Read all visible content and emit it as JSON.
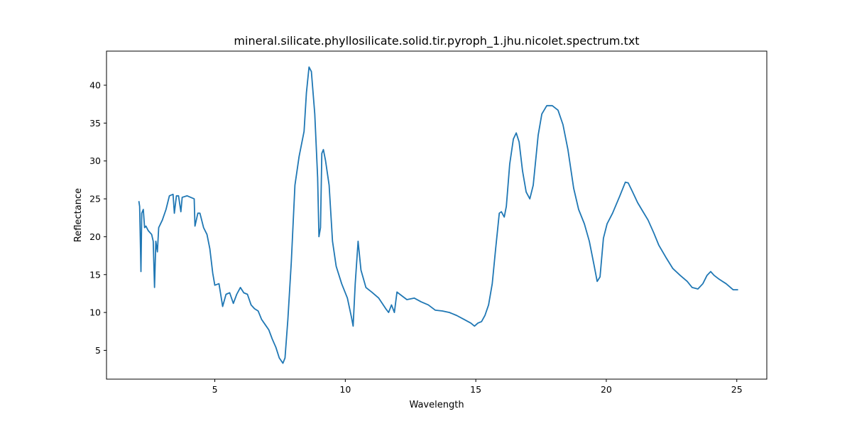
{
  "chart_data": {
    "type": "line",
    "title": "mineral.silicate.phyllosilicate.solid.tir.pyroph_1.jhu.nicolet.spectrum.txt",
    "x_label": "Wavelength",
    "y_label": "Reflectance",
    "xlim": [
      0.85,
      26.15
    ],
    "ylim": [
      1.2,
      44.5
    ],
    "xticks": [
      5,
      10,
      15,
      20,
      25
    ],
    "yticks": [
      5,
      10,
      15,
      20,
      25,
      30,
      35,
      40
    ],
    "grid": false,
    "series": [
      {
        "color": "#1f77b4",
        "x": [
          2.09,
          2.12,
          2.17,
          2.2,
          2.26,
          2.31,
          2.36,
          2.45,
          2.58,
          2.64,
          2.69,
          2.74,
          2.8,
          2.85,
          2.99,
          3.13,
          3.26,
          3.4,
          3.45,
          3.53,
          3.61,
          3.7,
          3.75,
          3.94,
          4.21,
          4.24,
          4.35,
          4.43,
          4.57,
          4.7,
          4.81,
          4.92,
          5.0,
          5.16,
          5.3,
          5.43,
          5.57,
          5.71,
          5.84,
          5.98,
          6.11,
          6.25,
          6.39,
          6.52,
          6.66,
          6.79,
          6.93,
          7.07,
          7.2,
          7.34,
          7.47,
          7.61,
          7.69,
          7.8,
          7.93,
          8.07,
          8.23,
          8.42,
          8.51,
          8.61,
          8.7,
          8.83,
          8.94,
          8.99,
          9.05,
          9.1,
          9.16,
          9.24,
          9.38,
          9.51,
          9.65,
          9.86,
          10.08,
          10.24,
          10.3,
          10.38,
          10.49,
          10.6,
          10.79,
          11.01,
          11.28,
          11.55,
          11.66,
          11.77,
          11.88,
          11.98,
          12.09,
          12.36,
          12.64,
          12.91,
          13.18,
          13.45,
          13.72,
          13.99,
          14.27,
          14.54,
          14.81,
          14.95,
          15.08,
          15.22,
          15.35,
          15.49,
          15.63,
          15.76,
          15.9,
          15.98,
          16.09,
          16.17,
          16.3,
          16.44,
          16.55,
          16.66,
          16.79,
          16.93,
          17.07,
          17.2,
          17.39,
          17.53,
          17.72,
          17.93,
          18.15,
          18.34,
          18.53,
          18.75,
          18.94,
          19.16,
          19.35,
          19.54,
          19.65,
          19.76,
          19.89,
          20.03,
          20.24,
          20.52,
          20.73,
          20.84,
          21.01,
          21.2,
          21.39,
          21.6,
          21.82,
          22.01,
          22.28,
          22.55,
          22.83,
          23.1,
          23.29,
          23.51,
          23.7,
          23.86,
          24.0,
          24.13,
          24.32,
          24.59,
          24.86,
          25.05
        ],
        "values": [
          24.7,
          24.0,
          15.4,
          23.1,
          23.6,
          21.2,
          21.4,
          20.8,
          20.3,
          19.4,
          13.3,
          19.4,
          18.0,
          21.2,
          22.2,
          23.6,
          25.4,
          25.6,
          23.1,
          25.4,
          25.4,
          23.3,
          25.2,
          25.4,
          25.0,
          21.4,
          23.1,
          23.1,
          21.2,
          20.3,
          18.4,
          15.2,
          13.6,
          13.8,
          10.8,
          12.4,
          12.6,
          11.2,
          12.4,
          13.3,
          12.6,
          12.4,
          11.0,
          10.5,
          10.2,
          9.1,
          8.4,
          7.7,
          6.5,
          5.4,
          4.0,
          3.3,
          4.0,
          9.1,
          16.6,
          26.8,
          30.6,
          33.9,
          39.0,
          42.4,
          41.8,
          36.2,
          27.8,
          20.0,
          21.2,
          31.0,
          31.5,
          30.1,
          26.8,
          19.4,
          16.1,
          13.8,
          11.9,
          9.3,
          8.2,
          13.8,
          19.4,
          15.6,
          13.3,
          12.7,
          11.9,
          10.5,
          10.0,
          11.0,
          10.0,
          12.7,
          12.4,
          11.7,
          11.9,
          11.4,
          11.0,
          10.3,
          10.2,
          10.0,
          9.6,
          9.1,
          8.6,
          8.2,
          8.6,
          8.8,
          9.6,
          11.0,
          13.8,
          18.4,
          23.1,
          23.3,
          22.6,
          24.0,
          29.6,
          32.9,
          33.7,
          32.5,
          28.7,
          25.9,
          25.0,
          26.8,
          33.4,
          36.2,
          37.3,
          37.3,
          36.7,
          34.8,
          31.5,
          26.4,
          23.6,
          21.7,
          19.4,
          16.1,
          14.1,
          14.7,
          19.8,
          21.7,
          23.1,
          25.4,
          27.2,
          27.1,
          25.9,
          24.5,
          23.4,
          22.2,
          20.5,
          18.9,
          17.3,
          15.8,
          14.9,
          14.1,
          13.3,
          13.1,
          13.8,
          14.9,
          15.4,
          14.9,
          14.4,
          13.8,
          13.0,
          13.0
        ]
      }
    ]
  }
}
